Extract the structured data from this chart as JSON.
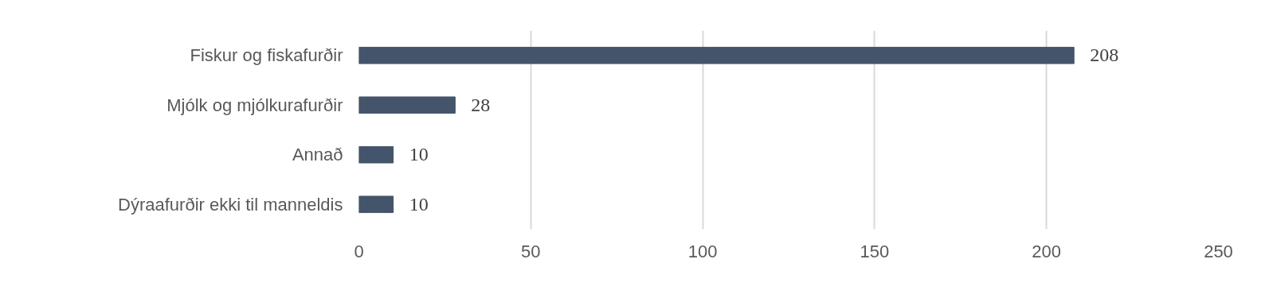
{
  "chart_data": {
    "type": "bar",
    "orientation": "horizontal",
    "categories": [
      "Fiskur og fiskafurðir",
      "Mjólk og mjólkurafurðir",
      "Annað",
      "Dýraafurðir ekki til manneldis"
    ],
    "values": [
      208,
      28,
      10,
      10
    ],
    "color": "#44546a",
    "xlim": [
      0,
      250
    ],
    "xticks": [
      0,
      50,
      100,
      150,
      200,
      250
    ],
    "grid": "x",
    "data_labels": true
  }
}
